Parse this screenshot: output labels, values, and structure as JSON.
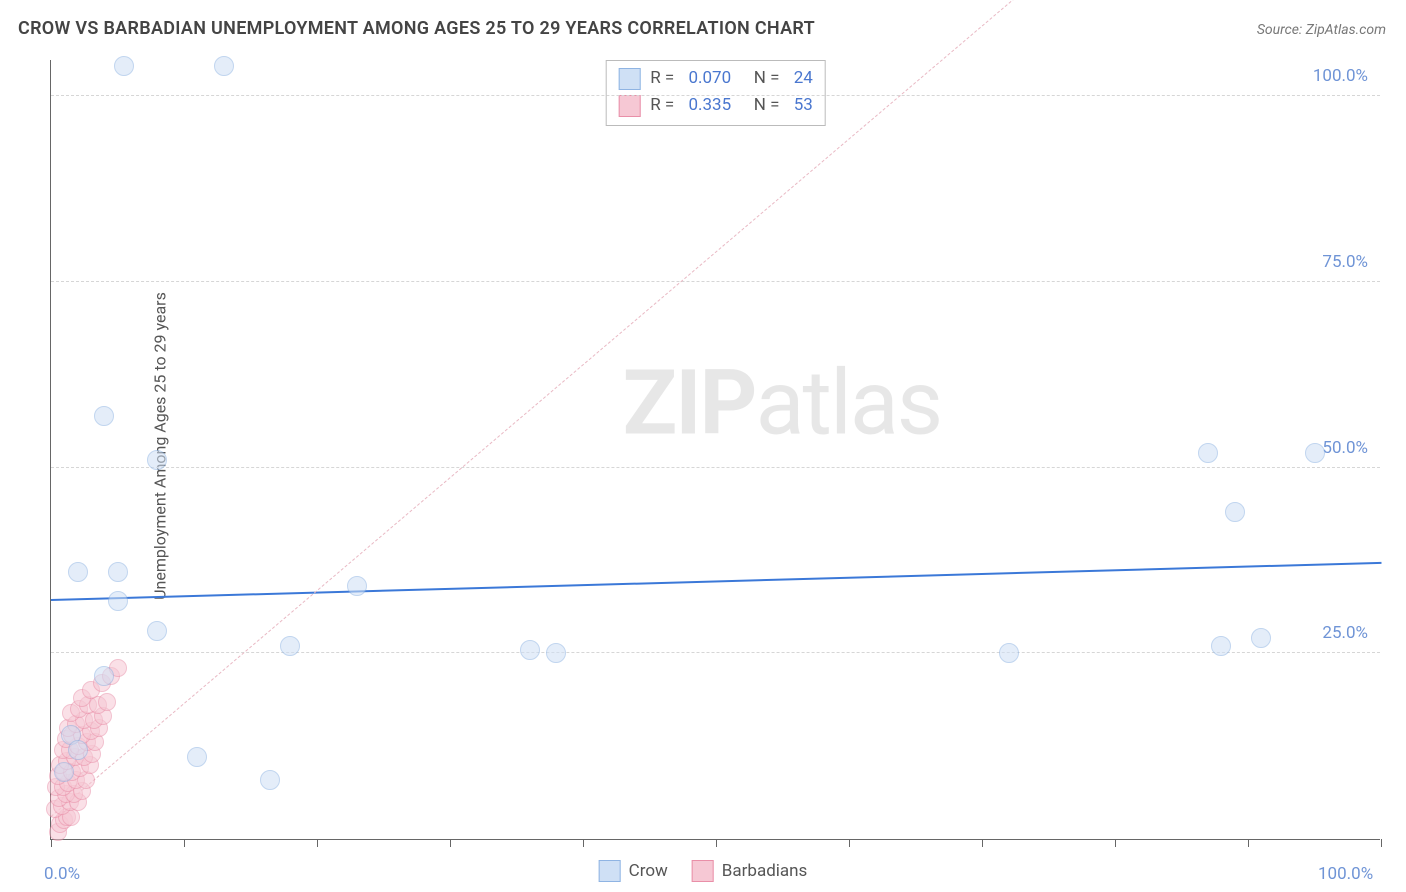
{
  "title": "CROW VS BARBADIAN UNEMPLOYMENT AMONG AGES 25 TO 29 YEARS CORRELATION CHART",
  "source": "Source: ZipAtlas.com",
  "ylabel": "Unemployment Among Ages 25 to 29 years",
  "watermark_bold": "ZIP",
  "watermark_rest": "atlas",
  "chart": {
    "type": "scatter",
    "background_color": "#ffffff",
    "grid_color": "#d6d6d6",
    "axis_color": "#666666",
    "xlim": [
      0,
      100
    ],
    "ylim": [
      0,
      105
    ],
    "x_ticks": [
      0,
      10,
      20,
      30,
      40,
      50,
      60,
      70,
      80,
      90,
      100
    ],
    "y_gridlines": [
      25,
      50,
      75,
      100
    ],
    "x_tick_labels": {
      "0": "0.0%",
      "100": "100.0%"
    },
    "y_tick_labels": {
      "25": "25.0%",
      "50": "50.0%",
      "75": "75.0%",
      "100": "100.0%"
    },
    "series": [
      {
        "name": "Crow",
        "fill": "#cfe0f5",
        "stroke": "#8fb4e3",
        "fill_opacity": 0.55,
        "marker_radius": 10,
        "R": "0.070",
        "N": "24",
        "trend": {
          "style": "solid",
          "color": "#3b78d8",
          "width": 2.5,
          "y_at_x0": 32,
          "y_at_x100": 37
        },
        "points": [
          [
            5.5,
            104
          ],
          [
            13,
            104
          ],
          [
            4,
            57
          ],
          [
            8,
            51
          ],
          [
            87,
            52
          ],
          [
            95,
            52
          ],
          [
            89,
            44
          ],
          [
            2,
            36
          ],
          [
            5,
            36
          ],
          [
            5,
            32
          ],
          [
            23,
            34
          ],
          [
            8,
            28
          ],
          [
            18,
            26
          ],
          [
            36,
            25.5
          ],
          [
            38,
            25
          ],
          [
            72,
            25
          ],
          [
            88,
            26
          ],
          [
            91,
            27
          ],
          [
            4,
            22
          ],
          [
            1.5,
            14
          ],
          [
            11,
            11
          ],
          [
            16.5,
            8
          ],
          [
            2,
            12
          ],
          [
            1,
            9
          ]
        ]
      },
      {
        "name": "Barbadians",
        "fill": "#f6c8d4",
        "stroke": "#e98fa8",
        "fill_opacity": 0.55,
        "marker_radius": 9,
        "R": "0.335",
        "N": "53",
        "trend": {
          "style": "dashed",
          "color": "#e9b9c4",
          "width": 1.5,
          "y_at_x0": 3,
          "y_at_x100": 155
        },
        "points": [
          [
            0.5,
            1
          ],
          [
            0.7,
            2
          ],
          [
            1,
            2.5
          ],
          [
            1.2,
            3
          ],
          [
            1.5,
            3
          ],
          [
            0.3,
            4
          ],
          [
            0.8,
            4.5
          ],
          [
            1.4,
            5
          ],
          [
            2,
            5
          ],
          [
            0.6,
            5.5
          ],
          [
            1.1,
            6
          ],
          [
            1.7,
            6
          ],
          [
            2.3,
            6.5
          ],
          [
            0.4,
            7
          ],
          [
            0.9,
            7
          ],
          [
            1.3,
            7.5
          ],
          [
            1.9,
            8
          ],
          [
            2.6,
            8
          ],
          [
            0.5,
            8.5
          ],
          [
            1,
            9
          ],
          [
            1.6,
            9
          ],
          [
            2.2,
            9.5
          ],
          [
            2.9,
            10
          ],
          [
            0.7,
            10
          ],
          [
            1.2,
            10.5
          ],
          [
            1.8,
            11
          ],
          [
            2.5,
            11
          ],
          [
            3.1,
            11.5
          ],
          [
            0.9,
            12
          ],
          [
            1.4,
            12
          ],
          [
            2,
            12.5
          ],
          [
            2.7,
            13
          ],
          [
            3.3,
            13
          ],
          [
            1.1,
            13.5
          ],
          [
            1.6,
            14
          ],
          [
            2.3,
            14
          ],
          [
            3,
            14.5
          ],
          [
            3.6,
            15
          ],
          [
            1.3,
            15
          ],
          [
            1.9,
            15.5
          ],
          [
            2.5,
            16
          ],
          [
            3.2,
            16
          ],
          [
            3.9,
            16.5
          ],
          [
            1.5,
            17
          ],
          [
            2.1,
            17.5
          ],
          [
            2.8,
            18
          ],
          [
            3.5,
            18
          ],
          [
            4.2,
            18.5
          ],
          [
            2.3,
            19
          ],
          [
            3,
            20
          ],
          [
            3.8,
            21
          ],
          [
            4.5,
            22
          ],
          [
            5,
            23
          ]
        ]
      }
    ],
    "bottom_legend": [
      {
        "label": "Crow",
        "fill": "#cfe0f5",
        "stroke": "#8fb4e3"
      },
      {
        "label": "Barbadians",
        "fill": "#f6c8d4",
        "stroke": "#e98fa8"
      }
    ]
  }
}
